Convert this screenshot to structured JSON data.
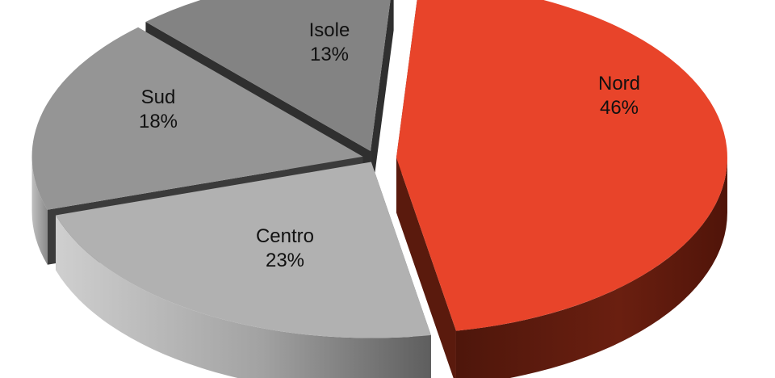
{
  "chart_data": {
    "type": "pie",
    "three_d": true,
    "exploded": true,
    "legend": "none",
    "categories": [
      "Nord",
      "Centro",
      "Sud",
      "Isole"
    ],
    "values": [
      46,
      23,
      18,
      13
    ],
    "data_labels": [
      "46%",
      "23%",
      "18%",
      "13%"
    ],
    "colors": {
      "Nord": "#e8442a",
      "Centro": "#b1b1b1",
      "Sud": "#959595",
      "Isole": "#838383"
    }
  }
}
